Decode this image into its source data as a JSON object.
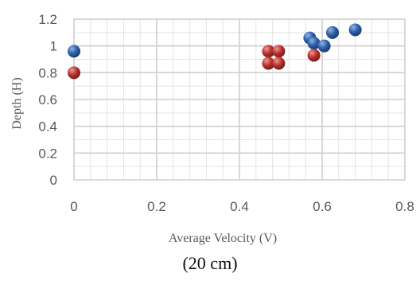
{
  "chart_data": {
    "type": "scatter",
    "xlabel": "Average Velocity (V)",
    "ylabel": "Depth (H)",
    "xlim": [
      0,
      0.8
    ],
    "ylim": [
      0,
      1.2
    ],
    "x_ticks": [
      "0",
      "0.2",
      "0.4",
      "0.6",
      "0.8"
    ],
    "y_ticks": [
      "0",
      "0.2",
      "0.4",
      "0.6",
      "0.8",
      "1",
      "1.2"
    ],
    "grid": true,
    "legend": "none",
    "series": [
      {
        "color": "#2e5fa8",
        "points": [
          {
            "x": 0.0,
            "y": 0.96
          },
          {
            "x": 0.57,
            "y": 1.06
          },
          {
            "x": 0.58,
            "y": 1.02
          },
          {
            "x": 0.605,
            "y": 1.0
          },
          {
            "x": 0.625,
            "y": 1.1
          },
          {
            "x": 0.68,
            "y": 1.12
          }
        ]
      },
      {
        "color": "#b8312f",
        "points": [
          {
            "x": 0.0,
            "y": 0.8
          },
          {
            "x": 0.47,
            "y": 0.96
          },
          {
            "x": 0.495,
            "y": 0.96
          },
          {
            "x": 0.47,
            "y": 0.87
          },
          {
            "x": 0.495,
            "y": 0.87
          },
          {
            "x": 0.58,
            "y": 0.93
          }
        ]
      }
    ]
  },
  "caption": "(20 cm)"
}
